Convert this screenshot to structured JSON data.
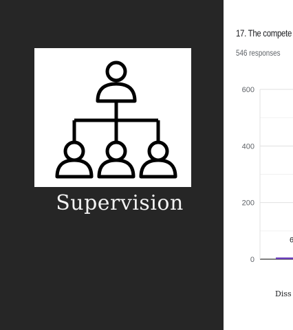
{
  "slide": {
    "caption": "Supervision",
    "icon": "hierarchy-org-chart-icon"
  },
  "form_result": {
    "question": "17. The compete",
    "responses": "546 responses"
  },
  "chart_data": {
    "type": "bar",
    "categories": [
      "Diss"
    ],
    "values": [
      6
    ],
    "data_labels": [
      "6"
    ],
    "ylim": [
      0,
      600
    ],
    "yticks": [
      0,
      200,
      400,
      600
    ],
    "grid": true,
    "bar_color": "#673ab7"
  }
}
